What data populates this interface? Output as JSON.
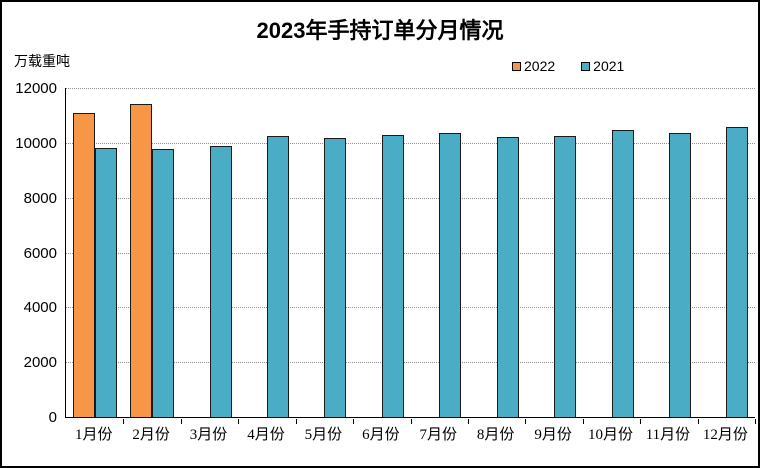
{
  "chart_data": {
    "type": "bar",
    "title": "2023年手持订单分月情况",
    "ylabel": "万载重吨",
    "xlabel": "",
    "categories": [
      "1月份",
      "2月份",
      "3月份",
      "4月份",
      "5月份",
      "6月份",
      "7月份",
      "8月份",
      "9月份",
      "10月份",
      "11月份",
      "12月份"
    ],
    "series": [
      {
        "name": "2022",
        "color": "#F79646",
        "values": [
          11100,
          11400,
          null,
          null,
          null,
          null,
          null,
          null,
          null,
          null,
          null,
          null
        ]
      },
      {
        "name": "2021",
        "color": "#4BACC6",
        "values": [
          9820,
          9770,
          9900,
          10250,
          10190,
          10280,
          10360,
          10220,
          10240,
          10460,
          10360,
          10560
        ]
      }
    ],
    "ylim": [
      0,
      12000
    ],
    "yticks": [
      0,
      2000,
      4000,
      6000,
      8000,
      10000,
      12000
    ],
    "grid": "horizontal-dotted",
    "legend_position": "top-right",
    "bar_border_color": "#1a1a1a",
    "gridline_color": "#909090",
    "axis_color": "#000000",
    "background_color": "#ffffff"
  }
}
